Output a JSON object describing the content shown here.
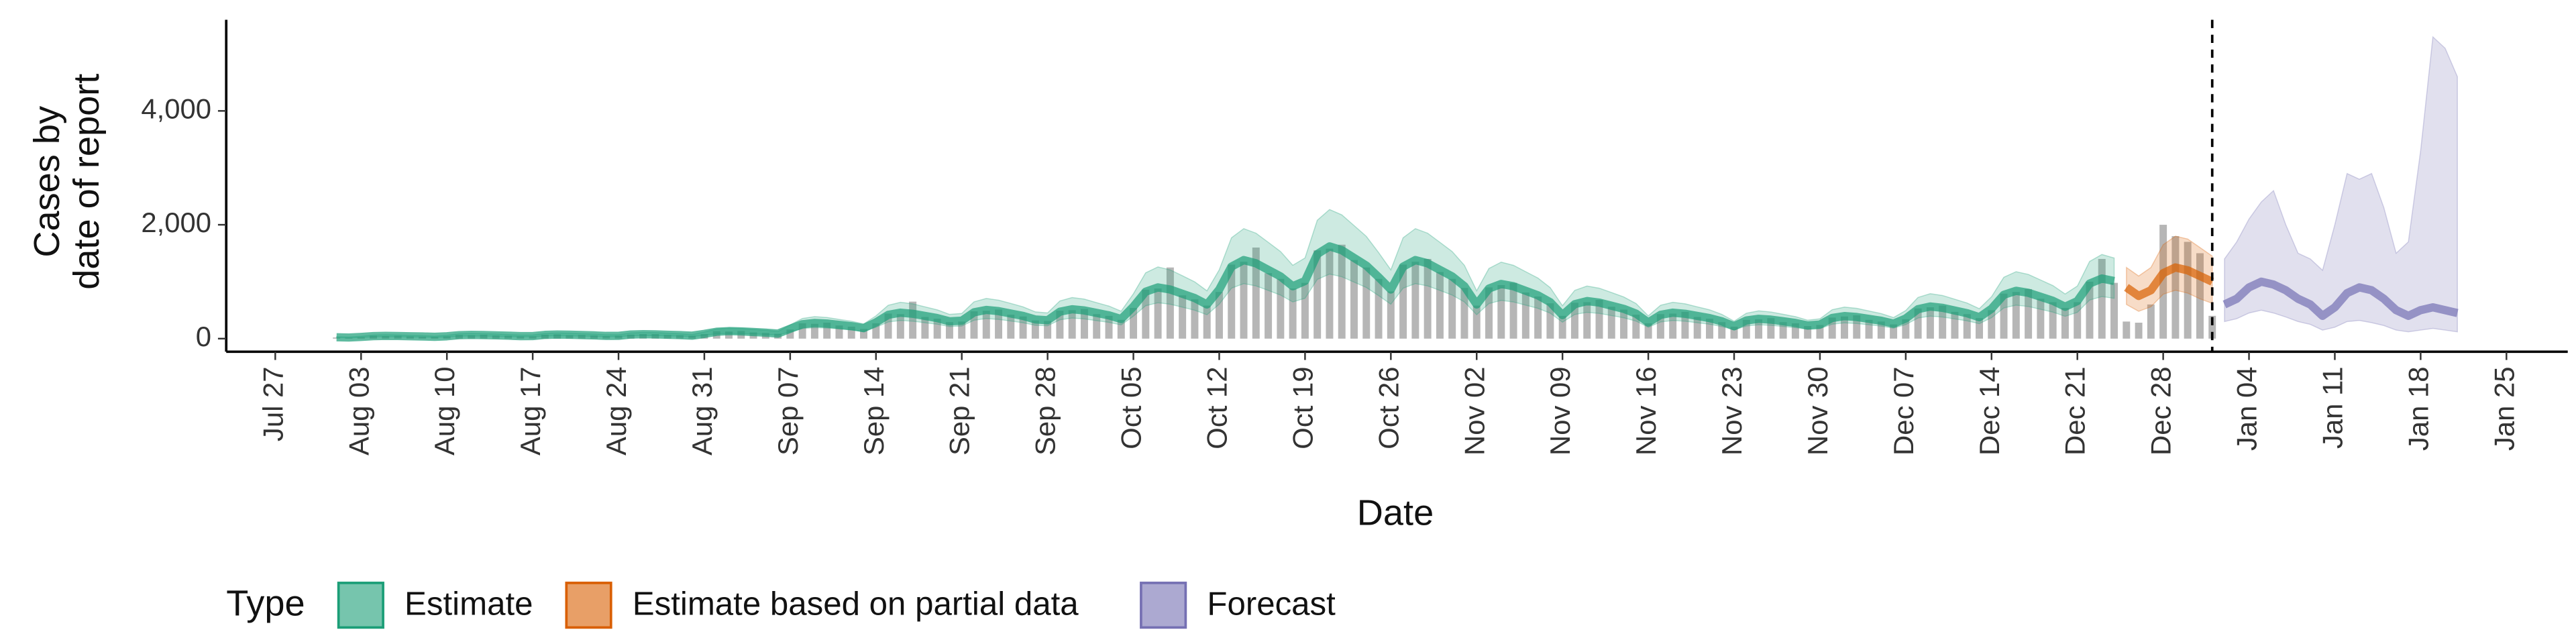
{
  "chart_data": {
    "type": "band",
    "xlabel": "Date",
    "ylabel": [
      "Cases by",
      "date of report"
    ],
    "xlim": [
      "Jul 23",
      "Jan 30"
    ],
    "xticks": [
      "Jul 27",
      "Aug 03",
      "Aug 10",
      "Aug 17",
      "Aug 24",
      "Aug 31",
      "Sep 07",
      "Sep 14",
      "Sep 21",
      "Sep 28",
      "Oct 05",
      "Oct 12",
      "Oct 19",
      "Oct 26",
      "Nov 02",
      "Nov 09",
      "Nov 16",
      "Nov 23",
      "Nov 30",
      "Dec 07",
      "Dec 14",
      "Dec 21",
      "Dec 28",
      "Jan 04",
      "Jan 11",
      "Jan 18",
      "Jan 25"
    ],
    "ylim": [
      -230,
      5600
    ],
    "yticks": [
      0,
      {
        "value": 2000,
        "label": "2,000"
      },
      {
        "value": 4000,
        "label": "4,000"
      }
    ],
    "forecast_line": "Jan 01",
    "legend_title": "Type",
    "legend_position": "bottom",
    "bars": {
      "color": "#9e9e9e",
      "x": [
        "Aug 01",
        "Aug 02",
        "Aug 03",
        "Aug 04",
        "Aug 05",
        "Aug 06",
        "Aug 07",
        "Aug 08",
        "Aug 09",
        "Aug 10",
        "Aug 11",
        "Aug 12",
        "Aug 13",
        "Aug 14",
        "Aug 15",
        "Aug 16",
        "Aug 17",
        "Aug 18",
        "Aug 19",
        "Aug 20",
        "Aug 21",
        "Aug 22",
        "Aug 23",
        "Aug 24",
        "Aug 25",
        "Aug 26",
        "Aug 27",
        "Aug 28",
        "Aug 29",
        "Aug 30",
        "Aug 31",
        "Sep 01",
        "Sep 02",
        "Sep 03",
        "Sep 04",
        "Sep 05",
        "Sep 06",
        "Sep 07",
        "Sep 08",
        "Sep 09",
        "Sep 10",
        "Sep 11",
        "Sep 12",
        "Sep 13",
        "Sep 14",
        "Sep 15",
        "Sep 16",
        "Sep 17",
        "Sep 18",
        "Sep 19",
        "Sep 20",
        "Sep 21",
        "Sep 22",
        "Sep 23",
        "Sep 24",
        "Sep 25",
        "Sep 26",
        "Sep 27",
        "Sep 28",
        "Sep 29",
        "Sep 30",
        "Oct 01",
        "Oct 02",
        "Oct 03",
        "Oct 04",
        "Oct 05",
        "Oct 06",
        "Oct 07",
        "Oct 08",
        "Oct 09",
        "Oct 10",
        "Oct 11",
        "Oct 12",
        "Oct 13",
        "Oct 14",
        "Oct 15",
        "Oct 16",
        "Oct 17",
        "Oct 18",
        "Oct 19",
        "Oct 20",
        "Oct 21",
        "Oct 22",
        "Oct 23",
        "Oct 24",
        "Oct 25",
        "Oct 26",
        "Oct 27",
        "Oct 28",
        "Oct 29",
        "Oct 30",
        "Oct 31",
        "Nov 01",
        "Nov 02",
        "Nov 03",
        "Nov 04",
        "Nov 05",
        "Nov 06",
        "Nov 07",
        "Nov 08",
        "Nov 09",
        "Nov 10",
        "Nov 11",
        "Nov 12",
        "Nov 13",
        "Nov 14",
        "Nov 15",
        "Nov 16",
        "Nov 17",
        "Nov 18",
        "Nov 19",
        "Nov 20",
        "Nov 21",
        "Nov 22",
        "Nov 23",
        "Nov 24",
        "Nov 25",
        "Nov 26",
        "Nov 27",
        "Nov 28",
        "Nov 29",
        "Nov 30",
        "Dec 01",
        "Dec 02",
        "Dec 03",
        "Dec 04",
        "Dec 05",
        "Dec 06",
        "Dec 07",
        "Dec 08",
        "Dec 09",
        "Dec 10",
        "Dec 11",
        "Dec 12",
        "Dec 13",
        "Dec 14",
        "Dec 15",
        "Dec 16",
        "Dec 17",
        "Dec 18",
        "Dec 19",
        "Dec 20",
        "Dec 21",
        "Dec 22",
        "Dec 23",
        "Dec 24",
        "Dec 25",
        "Dec 26",
        "Dec 27",
        "Dec 28",
        "Dec 29",
        "Dec 30",
        "Dec 31",
        "Jan 01"
      ],
      "values": [
        20,
        15,
        25,
        50,
        45,
        50,
        40,
        35,
        30,
        40,
        65,
        60,
        70,
        55,
        50,
        40,
        40,
        70,
        75,
        60,
        65,
        55,
        45,
        50,
        70,
        80,
        80,
        65,
        60,
        50,
        80,
        130,
        125,
        135,
        110,
        100,
        85,
        160,
        270,
        260,
        280,
        230,
        210,
        170,
        270,
        440,
        430,
        650,
        380,
        350,
        290,
        300,
        480,
        490,
        510,
        420,
        390,
        320,
        310,
        490,
        500,
        520,
        430,
        400,
        330,
        540,
        860,
        880,
        1250,
        760,
        690,
        580,
        820,
        1300,
        1350,
        1600,
        1150,
        1050,
        880,
        980,
        1550,
        1580,
        1650,
        1380,
        1250,
        1050,
        830,
        1300,
        1350,
        1400,
        1170,
        1050,
        890,
        580,
        900,
        940,
        980,
        810,
        740,
        620,
        400,
        630,
        640,
        680,
        560,
        510,
        420,
        270,
        430,
        440,
        470,
        380,
        350,
        290,
        210,
        330,
        340,
        360,
        290,
        270,
        220,
        240,
        370,
        390,
        410,
        330,
        300,
        250,
        340,
        530,
        550,
        580,
        470,
        430,
        360,
        500,
        790,
        820,
        870,
        700,
        640,
        540,
        640,
        1000,
        1400,
        980,
        300,
        280,
        600,
        2000,
        1800,
        1700,
        1500,
        400
      ]
    },
    "series": [
      {
        "name": "Estimate",
        "color": "#1b9e77",
        "x": [
          "Aug 01",
          "Aug 02",
          "Aug 03",
          "Aug 04",
          "Aug 05",
          "Aug 06",
          "Aug 07",
          "Aug 08",
          "Aug 09",
          "Aug 10",
          "Aug 11",
          "Aug 12",
          "Aug 13",
          "Aug 14",
          "Aug 15",
          "Aug 16",
          "Aug 17",
          "Aug 18",
          "Aug 19",
          "Aug 20",
          "Aug 21",
          "Aug 22",
          "Aug 23",
          "Aug 24",
          "Aug 25",
          "Aug 26",
          "Aug 27",
          "Aug 28",
          "Aug 29",
          "Aug 30",
          "Aug 31",
          "Sep 01",
          "Sep 02",
          "Sep 03",
          "Sep 04",
          "Sep 05",
          "Sep 06",
          "Sep 07",
          "Sep 08",
          "Sep 09",
          "Sep 10",
          "Sep 11",
          "Sep 12",
          "Sep 13",
          "Sep 14",
          "Sep 15",
          "Sep 16",
          "Sep 17",
          "Sep 18",
          "Sep 19",
          "Sep 20",
          "Sep 21",
          "Sep 22",
          "Sep 23",
          "Sep 24",
          "Sep 25",
          "Sep 26",
          "Sep 27",
          "Sep 28",
          "Sep 29",
          "Sep 30",
          "Oct 01",
          "Oct 02",
          "Oct 03",
          "Oct 04",
          "Oct 05",
          "Oct 06",
          "Oct 07",
          "Oct 08",
          "Oct 09",
          "Oct 10",
          "Oct 11",
          "Oct 12",
          "Oct 13",
          "Oct 14",
          "Oct 15",
          "Oct 16",
          "Oct 17",
          "Oct 18",
          "Oct 19",
          "Oct 20",
          "Oct 21",
          "Oct 22",
          "Oct 23",
          "Oct 24",
          "Oct 25",
          "Oct 26",
          "Oct 27",
          "Oct 28",
          "Oct 29",
          "Oct 30",
          "Oct 31",
          "Nov 01",
          "Nov 02",
          "Nov 03",
          "Nov 04",
          "Nov 05",
          "Nov 06",
          "Nov 07",
          "Nov 08",
          "Nov 09",
          "Nov 10",
          "Nov 11",
          "Nov 12",
          "Nov 13",
          "Nov 14",
          "Nov 15",
          "Nov 16",
          "Nov 17",
          "Nov 18",
          "Nov 19",
          "Nov 20",
          "Nov 21",
          "Nov 22",
          "Nov 23",
          "Nov 24",
          "Nov 25",
          "Nov 26",
          "Nov 27",
          "Nov 28",
          "Nov 29",
          "Nov 30",
          "Dec 01",
          "Dec 02",
          "Dec 03",
          "Dec 04",
          "Dec 05",
          "Dec 06",
          "Dec 07",
          "Dec 08",
          "Dec 09",
          "Dec 10",
          "Dec 11",
          "Dec 12",
          "Dec 13",
          "Dec 14",
          "Dec 15",
          "Dec 16",
          "Dec 17",
          "Dec 18",
          "Dec 19",
          "Dec 20",
          "Dec 21",
          "Dec 22",
          "Dec 23",
          "Dec 24"
        ],
        "values": [
          24,
          20,
          30,
          44,
          48,
          46,
          42,
          38,
          32,
          41,
          61,
          66,
          63,
          58,
          52,
          44,
          45,
          66,
          72,
          69,
          63,
          57,
          48,
          49,
          72,
          78,
          75,
          68,
          62,
          52,
          83,
          121,
          132,
          127,
          116,
          105,
          88,
          173,
          253,
          276,
          265,
          242,
          219,
          184,
          285,
          418,
          456,
          437,
          399,
          361,
          304,
          315,
          462,
          504,
          483,
          441,
          399,
          336,
          323,
          473,
          516,
          495,
          452,
          409,
          344,
          563,
          825,
          900,
          863,
          788,
          713,
          600,
          863,
          1265,
          1380,
          1323,
          1208,
          1093,
          920,
          1013,
          1485,
          1620,
          1553,
          1418,
          1283,
          1080,
          863,
          1265,
          1380,
          1323,
          1208,
          1093,
          920,
          600,
          880,
          960,
          920,
          840,
          760,
          640,
          413,
          605,
          660,
          633,
          578,
          523,
          440,
          285,
          418,
          456,
          437,
          399,
          361,
          304,
          218,
          319,
          348,
          334,
          305,
          276,
          232,
          248,
          363,
          396,
          380,
          347,
          314,
          264,
          353,
          517,
          564,
          541,
          494,
          447,
          376,
          525,
          770,
          840,
          805,
          735,
          665,
          560,
          660,
          968,
          1056,
          1012
        ],
        "lower": [
          17,
          14,
          21,
          31,
          34,
          32,
          29,
          27,
          22,
          29,
          43,
          46,
          44,
          41,
          36,
          31,
          32,
          46,
          50,
          48,
          44,
          40,
          34,
          34,
          50,
          55,
          53,
          48,
          43,
          36,
          58,
          85,
          92,
          89,
          81,
          74,
          62,
          121,
          177,
          193,
          186,
          169,
          153,
          129,
          200,
          293,
          319,
          306,
          279,
          253,
          213,
          221,
          323,
          353,
          338,
          309,
          279,
          235,
          226,
          331,
          361,
          347,
          316,
          286,
          241,
          394,
          578,
          630,
          604,
          552,
          499,
          420,
          604,
          886,
          966,
          926,
          846,
          765,
          644,
          709,
          1040,
          1134,
          1087,
          993,
          898,
          756,
          604,
          886,
          966,
          926,
          846,
          765,
          644,
          420,
          616,
          672,
          644,
          588,
          532,
          448,
          289,
          424,
          462,
          443,
          405,
          366,
          308,
          200,
          293,
          319,
          306,
          279,
          253,
          213,
          153,
          223,
          244,
          234,
          214,
          193,
          162,
          174,
          254,
          277,
          266,
          243,
          220,
          185,
          247,
          362,
          395,
          379,
          346,
          313,
          263,
          368,
          539,
          588,
          564,
          515,
          466,
          392,
          462,
          678,
          739,
          708
        ],
        "upper": [
          34,
          28,
          42,
          62,
          68,
          64,
          58,
          54,
          44,
          58,
          86,
          92,
          88,
          82,
          72,
          62,
          64,
          92,
          100,
          96,
          88,
          80,
          68,
          68,
          100,
          110,
          106,
          96,
          86,
          72,
          116,
          170,
          184,
          178,
          162,
          148,
          124,
          242,
          354,
          386,
          372,
          338,
          306,
          258,
          400,
          586,
          638,
          612,
          558,
          506,
          426,
          442,
          646,
          706,
          676,
          618,
          558,
          470,
          452,
          662,
          722,
          694,
          632,
          572,
          482,
          788,
          1156,
          1260,
          1208,
          1104,
          998,
          840,
          1208,
          1772,
          1932,
          1852,
          1692,
          1530,
          1288,
          1418,
          2080,
          2268,
          2174,
          1986,
          1796,
          1512,
          1208,
          1772,
          1932,
          1852,
          1692,
          1530,
          1288,
          840,
          1232,
          1344,
          1288,
          1176,
          1064,
          896,
          578,
          848,
          924,
          886,
          810,
          732,
          616,
          400,
          586,
          638,
          612,
          558,
          506,
          426,
          306,
          446,
          488,
          468,
          428,
          386,
          324,
          348,
          508,
          554,
          532,
          486,
          440,
          370,
          494,
          724,
          790,
          758,
          692,
          626,
          526,
          736,
          1078,
          1176,
          1128,
          1030,
          932,
          784,
          924,
          1356,
          1478,
          1416
        ]
      },
      {
        "name": "Estimate based on partial data",
        "color": "#d95f02",
        "x": [
          "Dec 25",
          "Dec 26",
          "Dec 27",
          "Dec 28",
          "Dec 29",
          "Dec 30",
          "Dec 31",
          "Jan 01"
        ],
        "values": [
          900,
          750,
          850,
          1150,
          1250,
          1200,
          1100,
          1000
        ],
        "lower": [
          600,
          480,
          560,
          780,
          850,
          800,
          700,
          620
        ],
        "upper": [
          1250,
          1100,
          1250,
          1650,
          1800,
          1750,
          1600,
          1450
        ]
      },
      {
        "name": "Forecast",
        "color": "#7570b3",
        "x": [
          "Jan 02",
          "Jan 03",
          "Jan 04",
          "Jan 05",
          "Jan 06",
          "Jan 07",
          "Jan 08",
          "Jan 09",
          "Jan 10",
          "Jan 11",
          "Jan 12",
          "Jan 13",
          "Jan 14",
          "Jan 15",
          "Jan 16",
          "Jan 17",
          "Jan 18",
          "Jan 19",
          "Jan 20",
          "Jan 21"
        ],
        "values": [
          600,
          700,
          900,
          1000,
          950,
          850,
          700,
          600,
          400,
          550,
          800,
          900,
          850,
          700,
          500,
          400,
          500,
          550,
          500,
          450
        ],
        "lower": [
          300,
          350,
          450,
          500,
          450,
          380,
          300,
          250,
          150,
          200,
          300,
          320,
          280,
          230,
          150,
          120,
          150,
          180,
          150,
          120
        ],
        "upper": [
          1400,
          1700,
          2100,
          2400,
          2600,
          2000,
          1500,
          1400,
          1200,
          2000,
          2900,
          2800,
          2900,
          2300,
          1500,
          1700,
          3300,
          5300,
          5100,
          4600
        ]
      }
    ]
  }
}
